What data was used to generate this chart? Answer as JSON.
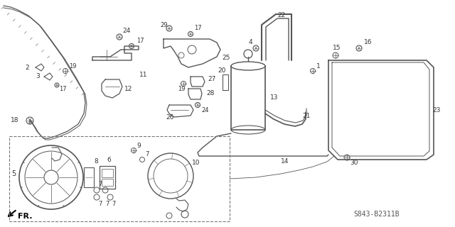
{
  "bg_color": "#ffffff",
  "dc": "#555555",
  "lc": "#333333",
  "watermark": "S843-B2311B",
  "fr_label": "FR.",
  "fig_width": 6.4,
  "fig_height": 3.2,
  "dpi": 100
}
